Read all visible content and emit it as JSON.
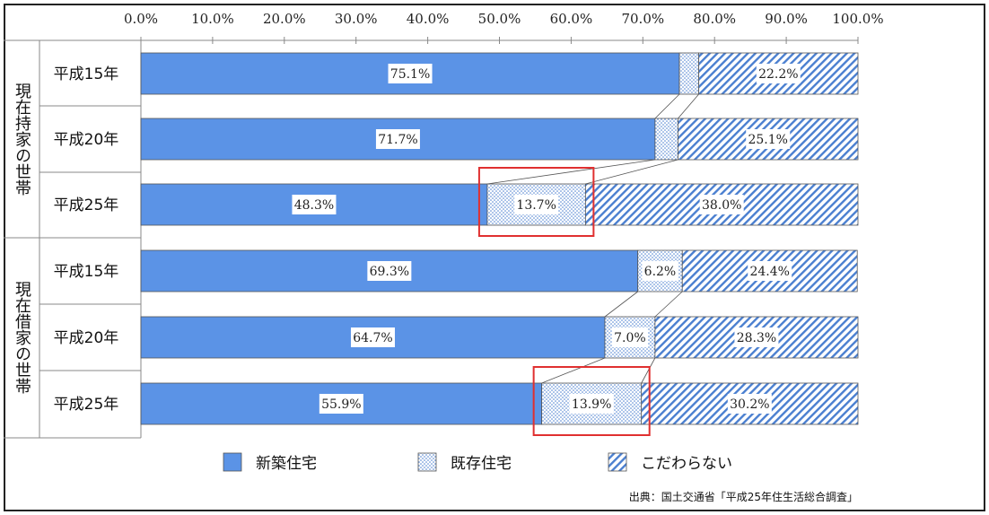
{
  "chart_data": {
    "type": "bar",
    "orientation": "horizontal",
    "stacked": true,
    "xlim": [
      0,
      100
    ],
    "x_ticks": [
      "0.0%",
      "10.0%",
      "20.0%",
      "30.0%",
      "40.0%",
      "50.0%",
      "60.0%",
      "70.0%",
      "80.0%",
      "90.0%",
      "100.0%"
    ],
    "groups": [
      {
        "label": "現在持家の世帯",
        "rows": [
          {
            "label": "平成15年",
            "values": [
              75.1,
              2.7,
              22.2
            ],
            "value_labels": [
              "75.1%",
              "",
              "22.2%"
            ]
          },
          {
            "label": "平成20年",
            "values": [
              71.7,
              3.2,
              25.1
            ],
            "value_labels": [
              "71.7%",
              "",
              "25.1%"
            ]
          },
          {
            "label": "平成25年",
            "values": [
              48.3,
              13.7,
              38.0
            ],
            "value_labels": [
              "48.3%",
              "13.7%",
              "38.0%"
            ]
          }
        ]
      },
      {
        "label": "現在借家の世帯",
        "rows": [
          {
            "label": "平成15年",
            "values": [
              69.3,
              6.2,
              24.4
            ],
            "value_labels": [
              "69.3%",
              "6.2%",
              "24.4%"
            ]
          },
          {
            "label": "平成20年",
            "values": [
              64.7,
              7.0,
              28.3
            ],
            "value_labels": [
              "64.7%",
              "7.0%",
              "28.3%"
            ]
          },
          {
            "label": "平成25年",
            "values": [
              55.9,
              13.9,
              30.2
            ],
            "value_labels": [
              "55.9%",
              "13.9%",
              "30.2%"
            ]
          }
        ]
      }
    ],
    "series": [
      {
        "name": "新築住宅",
        "color": "#5b93e6",
        "pattern": "solid"
      },
      {
        "name": "既存住宅",
        "color": "#a9c4ea",
        "pattern": "dots"
      },
      {
        "name": "こだわらない",
        "color": "#5b93e6",
        "pattern": "diagonal-hatch"
      }
    ],
    "highlighted_cells": [
      {
        "group": 0,
        "row": 2,
        "series": 1
      },
      {
        "group": 1,
        "row": 2,
        "series": 1
      }
    ],
    "highlight_color": "#e03030",
    "legend_position": "bottom",
    "source_note": "出典：国土交通省「平成25年住生活総合調査」"
  }
}
